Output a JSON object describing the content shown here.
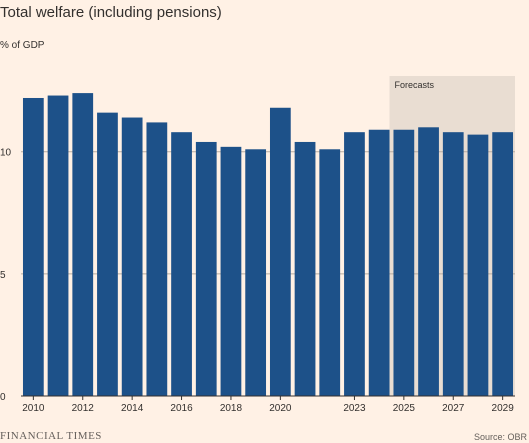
{
  "chart_data": {
    "type": "bar",
    "title": "Total welfare (including pensions)",
    "ylabel": "% of GDP",
    "categories": [
      "2010",
      "2011",
      "2012",
      "2013",
      "2014",
      "2015",
      "2016",
      "2017",
      "2018",
      "2019",
      "2020",
      "2021",
      "2022",
      "2023",
      "2024",
      "2025",
      "2026",
      "2027",
      "2028",
      "2029"
    ],
    "tick_labels": [
      "2010",
      "",
      "2012",
      "",
      "2014",
      "",
      "2016",
      "",
      "2018",
      "",
      "2020",
      "",
      "",
      "2023",
      "",
      "2025",
      "",
      "2027",
      "",
      "2029"
    ],
    "values": [
      12.2,
      12.3,
      12.4,
      11.6,
      11.4,
      11.2,
      10.8,
      10.4,
      10.2,
      10.1,
      11.8,
      10.4,
      10.1,
      10.8,
      10.9,
      10.9,
      11.0,
      10.8,
      10.7,
      10.8
    ],
    "ylim": [
      0,
      13.1
    ],
    "yticks": [
      0,
      5,
      10
    ],
    "forecast_label": "Forecasts",
    "forecast_start": "2025",
    "colors": {
      "bar": "#1d5189",
      "forecast_shade": "#e9ddd2",
      "grid": "#b8aca1",
      "axis": "#33302e"
    },
    "grid": true
  },
  "footer": {
    "brand": "FINANCIAL TIMES",
    "source": "Source: OBR"
  }
}
